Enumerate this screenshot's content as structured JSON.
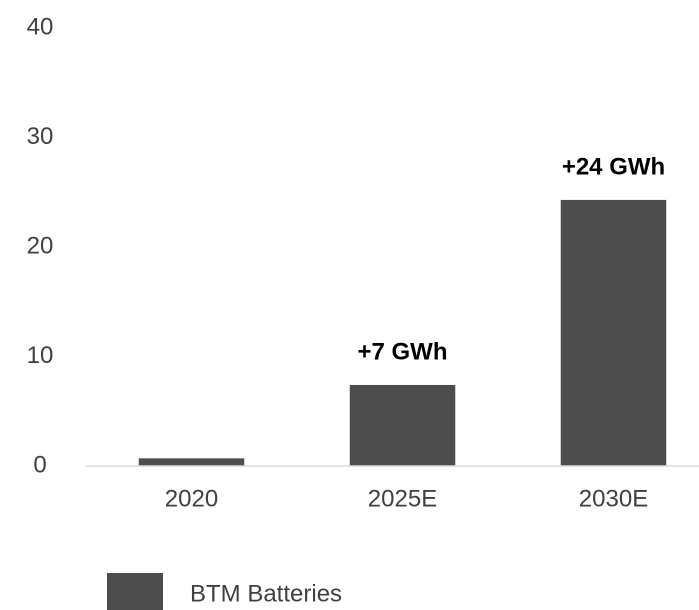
{
  "chart_data": {
    "type": "bar",
    "categories": [
      "2020",
      "2025E",
      "2030E"
    ],
    "series": [
      {
        "name": "BTM Batteries",
        "color": "#4d4d4d",
        "values": [
          0.7,
          7.4,
          24.3
        ],
        "value_labels": [
          null,
          "+7 GWh",
          "+24 GWh"
        ]
      }
    ],
    "ylim": [
      0,
      40
    ],
    "yticks": [
      0,
      10,
      20,
      30,
      40
    ],
    "grid": false,
    "legend": "bottom"
  }
}
